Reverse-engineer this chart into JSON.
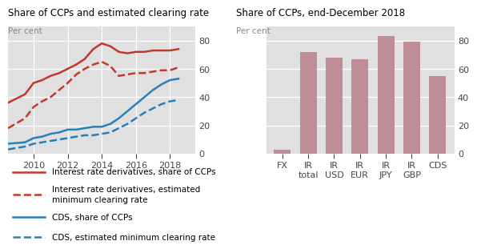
{
  "left_title": "Share of CCPs and estimated clearing rate",
  "right_title": "Share of CCPs, end-December 2018",
  "per_cent": "Per cent",
  "bg_color": "#e0e0e0",
  "line_years": [
    2008.5,
    2009.5,
    2010,
    2010.5,
    2011,
    2011.5,
    2012,
    2012.5,
    2013,
    2013.5,
    2014,
    2014.5,
    2015,
    2015.5,
    2016,
    2016.5,
    2017,
    2017.5,
    2018,
    2018.5
  ],
  "ir_ccp": [
    36,
    42,
    50,
    52,
    55,
    57,
    60,
    63,
    67,
    74,
    78,
    76,
    72,
    71,
    72,
    72,
    73,
    73,
    73,
    74
  ],
  "ir_min": [
    18,
    25,
    33,
    37,
    40,
    45,
    50,
    56,
    60,
    63,
    65,
    62,
    55,
    56,
    57,
    57,
    58,
    59,
    59,
    61
  ],
  "cds_ccp": [
    7,
    8,
    11,
    12,
    14,
    15,
    17,
    17,
    18,
    19,
    19,
    21,
    25,
    30,
    35,
    40,
    45,
    49,
    52,
    53
  ],
  "cds_min": [
    3,
    5,
    7,
    8,
    9,
    10,
    11,
    12,
    13,
    13,
    14,
    15,
    18,
    21,
    25,
    29,
    32,
    35,
    37,
    38
  ],
  "left_ylim": [
    0,
    90
  ],
  "left_yticks": [
    0,
    20,
    40,
    60,
    80
  ],
  "left_xticks": [
    2010,
    2012,
    2014,
    2016,
    2018
  ],
  "left_xlim": [
    2008.5,
    2019.5
  ],
  "ir_color": "#c0392b",
  "cds_color": "#2980b9",
  "bar_categories": [
    "FX",
    "IR\ntotal",
    "IR\nUSD",
    "IR\nEUR",
    "IR\nJPY",
    "IR\nGBP",
    "CDS"
  ],
  "bar_values": [
    3,
    72,
    68,
    67,
    83,
    79,
    55
  ],
  "bar_color": "#bf8d96",
  "right_ylim": [
    0,
    90
  ],
  "right_yticks": [
    0,
    20,
    40,
    60,
    80
  ],
  "legend_items": [
    {
      "label": "Interest rate derivatives, share of CCPs",
      "color": "#c0392b",
      "ls": "solid"
    },
    {
      "label": "Interest rate derivatives, estimated\nminimum clearing rate",
      "color": "#c0392b",
      "ls": "dashed"
    },
    {
      "label": "CDS, share of CCPs",
      "color": "#2980b9",
      "ls": "solid"
    },
    {
      "label": "CDS, estimated minimum clearing rate",
      "color": "#2980b9",
      "ls": "dashed"
    }
  ]
}
